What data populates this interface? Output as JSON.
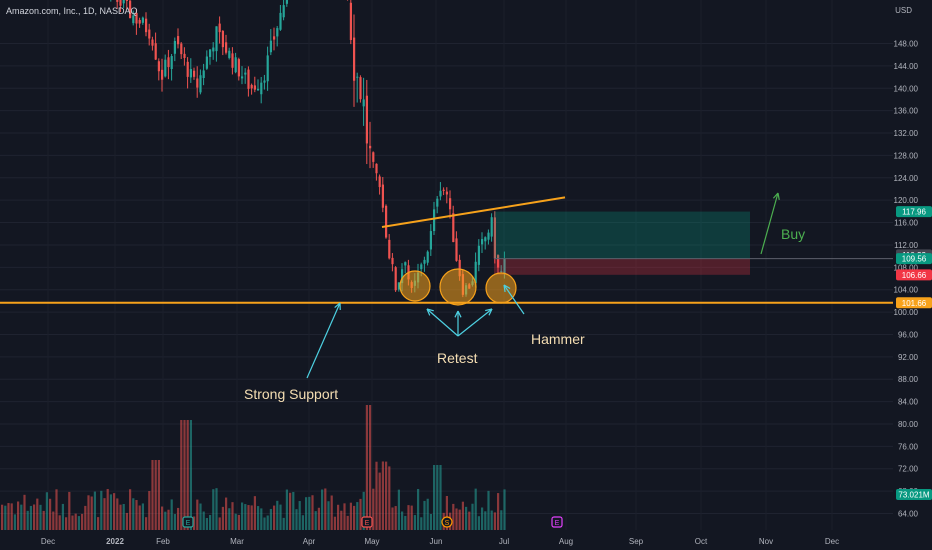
{
  "header": {
    "symbol_label": "Amazon.com, Inc., 1D, NASDAQ",
    "currency": "USD"
  },
  "colors": {
    "background": "#131722",
    "up": "#26a69a",
    "down": "#ef5350",
    "support": "#f7a21b",
    "annotation_text": "#f5deb3",
    "arrow": "#4dd0e1",
    "buy": "#4caf50"
  },
  "chart_data": {
    "type": "candlestick",
    "y_axis": {
      "min": 62,
      "max": 152,
      "ticks": [
        64,
        68,
        72,
        76,
        80,
        84,
        88,
        92,
        96,
        100,
        104,
        108,
        112,
        116,
        120,
        124,
        128,
        132,
        136,
        140,
        144,
        148
      ]
    },
    "x_axis": {
      "labels": [
        "Dec",
        "2022",
        "Feb",
        "Mar",
        "Apr",
        "May",
        "Jun",
        "Jul",
        "Aug",
        "Sep",
        "Oct",
        "Nov",
        "Dec"
      ]
    },
    "price_labels": [
      {
        "value": 117.96,
        "text": "117.96",
        "color": "#089981"
      },
      {
        "value": 110.22,
        "text": "110.22",
        "color": "#434651"
      },
      {
        "value": 109.56,
        "text": "109.56",
        "color": "#089981"
      },
      {
        "value": 106.66,
        "text": "106.66",
        "color": "#f23645"
      },
      {
        "value": 101.66,
        "text": "101.66",
        "color": "#f7a21b"
      }
    ],
    "volume_label": "73.021M",
    "support_level": 101.66,
    "position": {
      "entry": 109.56,
      "target": 117.96,
      "stop": 106.66
    },
    "annotations": {
      "support": "Strong Support",
      "retest": "Retest",
      "hammer": "Hammer",
      "buy": "Buy"
    },
    "event_markers": [
      "E",
      "E",
      "S",
      "E"
    ]
  }
}
